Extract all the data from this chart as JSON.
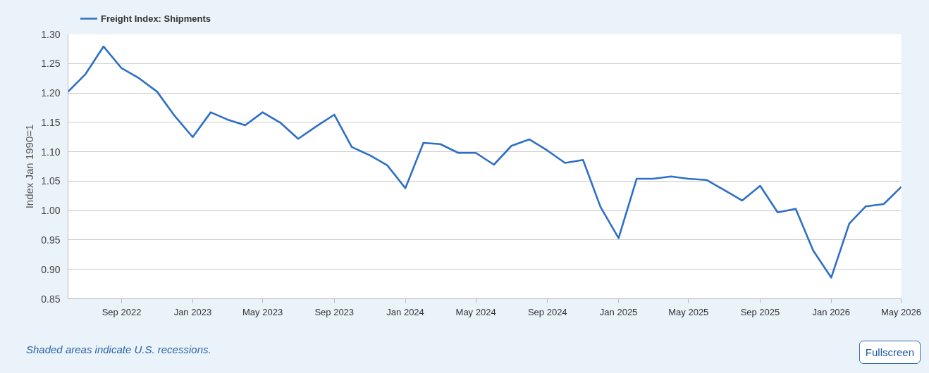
{
  "chart_data": {
    "type": "line",
    "ylabel": "Index Jan 1990=1",
    "x": [
      "2022-06",
      "2022-07",
      "2022-08",
      "2022-09",
      "2022-10",
      "2022-11",
      "2022-12",
      "2023-01",
      "2023-02",
      "2023-03",
      "2023-04",
      "2023-05",
      "2023-06",
      "2023-07",
      "2023-08",
      "2023-09",
      "2023-10",
      "2023-11",
      "2023-12",
      "2024-01",
      "2024-02",
      "2024-03",
      "2024-04",
      "2024-05",
      "2024-06",
      "2024-07",
      "2024-08",
      "2024-09",
      "2024-10",
      "2024-11",
      "2024-12",
      "2025-01",
      "2025-02",
      "2025-03",
      "2025-04",
      "2025-05",
      "2025-06",
      "2025-07",
      "2025-08",
      "2025-09",
      "2025-10",
      "2025-11",
      "2025-12",
      "2026-01",
      "2026-02",
      "2026-03",
      "2026-04",
      "2026-05"
    ],
    "series": [
      {
        "name": "Freight Index: Shipments",
        "color": "#2e6fc7",
        "values": [
          1.202,
          1.232,
          1.279,
          1.242,
          1.225,
          1.202,
          1.161,
          1.125,
          1.167,
          1.155,
          1.145,
          1.167,
          1.149,
          1.122,
          1.143,
          1.163,
          1.108,
          1.094,
          1.077,
          1.038,
          1.115,
          1.113,
          1.098,
          1.098,
          1.078,
          1.11,
          1.121,
          1.102,
          1.081,
          1.086,
          1.006,
          0.953,
          1.054,
          1.054,
          1.058,
          1.054,
          1.052,
          1.035,
          1.017,
          1.042,
          0.997,
          1.003,
          0.932,
          0.886,
          0.978,
          1.007,
          1.011,
          1.04
        ]
      }
    ],
    "xlim": [
      "2022-06",
      "2026-05"
    ],
    "xticks": [
      {
        "value": "2022-09",
        "label": "Sep 2022"
      },
      {
        "value": "2023-01",
        "label": "Jan 2023"
      },
      {
        "value": "2023-05",
        "label": "May 2023"
      },
      {
        "value": "2023-09",
        "label": "Sep 2023"
      },
      {
        "value": "2024-01",
        "label": "Jan 2024"
      },
      {
        "value": "2024-05",
        "label": "May 2024"
      },
      {
        "value": "2024-09",
        "label": "Sep 2024"
      },
      {
        "value": "2025-01",
        "label": "Jan 2025"
      },
      {
        "value": "2025-05",
        "label": "May 2025"
      },
      {
        "value": "2025-09",
        "label": "Sep 2025"
      },
      {
        "value": "2026-01",
        "label": "Jan 2026"
      },
      {
        "value": "2026-05",
        "label": "May 2026"
      }
    ],
    "ylim": [
      0.85,
      1.3
    ],
    "yticks": [
      0.85,
      {
        "value": 0.9,
        "label": "0.90"
      },
      0.95,
      {
        "value": 1,
        "label": "1.00"
      },
      1.05,
      {
        "value": 1.1,
        "label": "1.10"
      },
      1.15,
      {
        "value": 1.2,
        "label": "1.20"
      },
      1.25,
      {
        "value": 1.3,
        "label": "1.30"
      }
    ],
    "grid": "y",
    "legend": "top left",
    "annotations": [
      "Shaded areas indicate U.S. recessions.",
      "Fullscreen"
    ]
  }
}
